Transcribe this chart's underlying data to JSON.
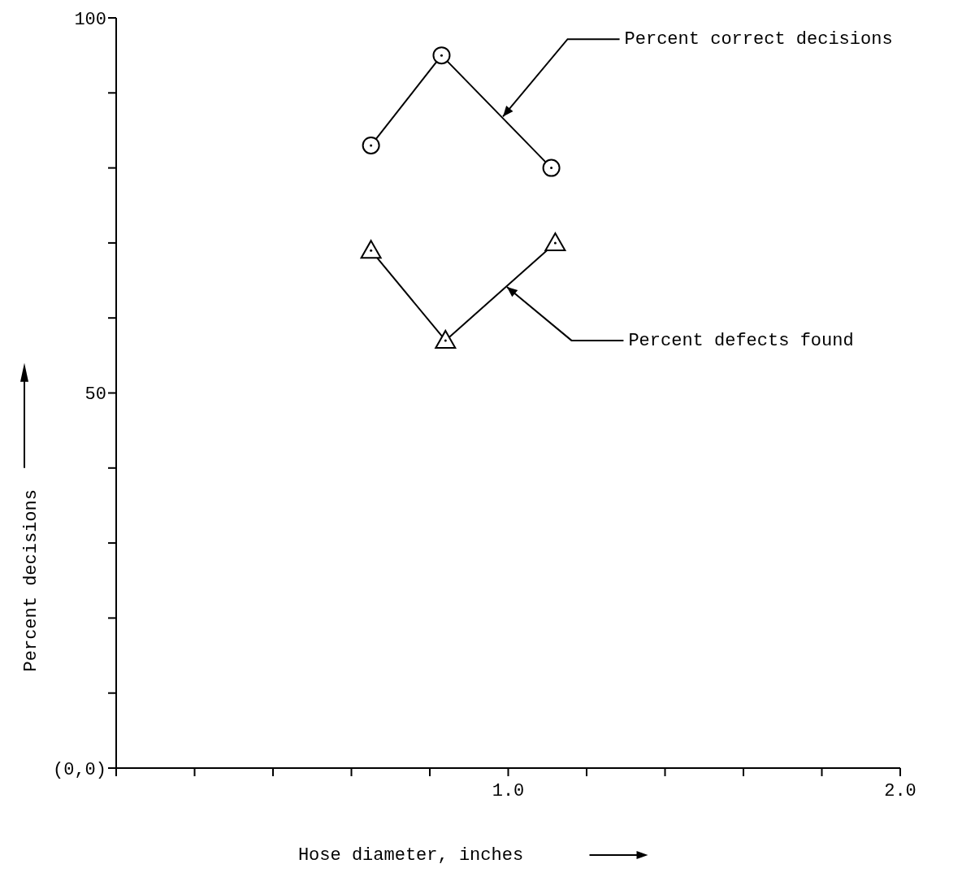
{
  "chart_data": {
    "type": "line",
    "xlabel": "Hose diameter, inches",
    "ylabel": "Percent decisions",
    "xlim": [
      0,
      2.0
    ],
    "ylim": [
      0,
      100
    ],
    "xticks": [
      {
        "value": 0,
        "label": null
      },
      {
        "value": 0.2,
        "label": null
      },
      {
        "value": 0.4,
        "label": null
      },
      {
        "value": 0.6,
        "label": null
      },
      {
        "value": 0.8,
        "label": null
      },
      {
        "value": 1.0,
        "label": "1.0"
      },
      {
        "value": 1.2,
        "label": null
      },
      {
        "value": 1.4,
        "label": null
      },
      {
        "value": 1.6,
        "label": null
      },
      {
        "value": 1.8,
        "label": null
      },
      {
        "value": 2.0,
        "label": "2.0"
      }
    ],
    "yticks": [
      {
        "value": 0,
        "label": "(0,0)"
      },
      {
        "value": 10,
        "label": null
      },
      {
        "value": 20,
        "label": null
      },
      {
        "value": 30,
        "label": null
      },
      {
        "value": 40,
        "label": null
      },
      {
        "value": 50,
        "label": "50"
      },
      {
        "value": 60,
        "label": null
      },
      {
        "value": 70,
        "label": null
      },
      {
        "value": 80,
        "label": null
      },
      {
        "value": 90,
        "label": null
      },
      {
        "value": 100,
        "label": "100"
      }
    ],
    "grid": false,
    "legend": false,
    "line_style": "solid",
    "series": [
      {
        "name": "Percent correct decisions",
        "color": "#000000",
        "marker": "circle",
        "x": [
          0.65,
          0.83,
          1.11
        ],
        "values": [
          83,
          95,
          80
        ]
      },
      {
        "name": "Percent defects found",
        "color": "#000000",
        "marker": "triangle",
        "x": [
          0.65,
          0.84,
          1.12
        ],
        "values": [
          69,
          57,
          70
        ]
      }
    ]
  }
}
